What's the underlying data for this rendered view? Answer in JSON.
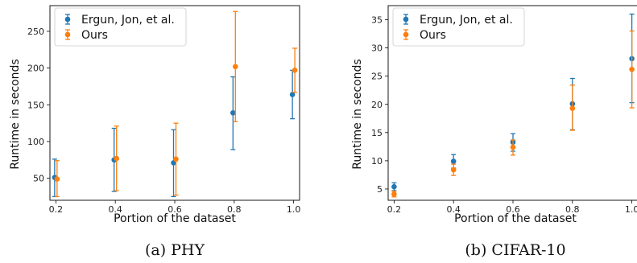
{
  "colors": {
    "series1": "#1f77b4",
    "series2": "#ff7f0e"
  },
  "chart_data": [
    {
      "type": "scatter",
      "subtitle": "(a) PHY",
      "xlabel": "Portion of the dataset",
      "ylabel": "Runtime in seconds",
      "xlim": [
        0.18,
        1.02
      ],
      "ylim": [
        20,
        285
      ],
      "xticks": [
        "0.2",
        "0.4",
        "0.6",
        "0.8",
        "1.0"
      ],
      "yticks": [
        "50",
        "100",
        "150",
        "200",
        "250"
      ],
      "legend_position": "top-left",
      "grid": false,
      "x": [
        0.2,
        0.4,
        0.6,
        0.8,
        1.0
      ],
      "series": [
        {
          "name": "Ergun, Jon, et al.",
          "values": [
            51,
            75,
            71,
            139,
            164
          ],
          "lower": [
            25,
            32,
            25,
            89,
            131
          ],
          "upper": [
            76,
            118,
            116,
            188,
            197
          ]
        },
        {
          "name": "Ours",
          "values": [
            49,
            77,
            76,
            202,
            197
          ],
          "lower": [
            25,
            33,
            27,
            127,
            167
          ],
          "upper": [
            74,
            121,
            125,
            277,
            227
          ]
        }
      ]
    },
    {
      "type": "scatter",
      "subtitle": "(b) CIFAR-10",
      "xlabel": "Portion of the dataset",
      "ylabel": "Runtime in seconds",
      "xlim": [
        0.18,
        1.02
      ],
      "ylim": [
        3,
        37.5
      ],
      "xticks": [
        "0.2",
        "0.4",
        "0.6",
        "0.8",
        "1.0"
      ],
      "yticks": [
        "5",
        "10",
        "15",
        "20",
        "25",
        "30",
        "35"
      ],
      "legend_position": "top-left",
      "grid": false,
      "x": [
        0.2,
        0.4,
        0.6,
        0.8,
        1.0
      ],
      "series": [
        {
          "name": "Ergun, Jon, et al.",
          "values": [
            5.4,
            9.9,
            13.3,
            20.1,
            28.1
          ],
          "lower": [
            4.7,
            8.7,
            11.7,
            15.5,
            20.3
          ],
          "upper": [
            6.1,
            11.1,
            14.8,
            24.6,
            36.0
          ]
        },
        {
          "name": "Ours",
          "values": [
            4.1,
            8.4,
            12.4,
            19.3,
            26.2
          ],
          "lower": [
            3.6,
            7.4,
            11.0,
            15.4,
            19.4
          ],
          "upper": [
            4.6,
            9.4,
            13.7,
            23.4,
            33.0
          ]
        }
      ]
    }
  ]
}
